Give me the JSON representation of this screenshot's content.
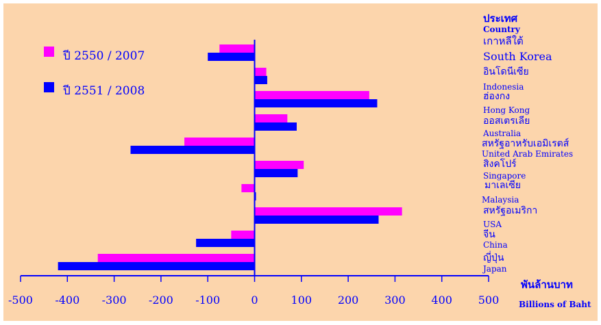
{
  "chart_data": {
    "type": "bar",
    "orientation": "horizontal",
    "title": "",
    "header": {
      "thai": "ประเทศ",
      "english": "Country"
    },
    "xlabel": {
      "thai": "พันล้านบาท",
      "english": "Billions of Baht"
    },
    "xlim": [
      -500,
      500
    ],
    "xticks": [
      "-500",
      "-400",
      "-300",
      "-200",
      "-100",
      "0",
      "100",
      "200",
      "300",
      "400",
      "500"
    ],
    "grid": false,
    "legend_position": "top-left",
    "categories": [
      {
        "thai": "เกาหลีใต้",
        "english": "South Korea"
      },
      {
        "thai": "อินโดนีเซีย",
        "english": "Indonesia"
      },
      {
        "thai": "ฮ่องกง",
        "english": "Hong Kong"
      },
      {
        "thai": "ออสเตรเลีย",
        "english": "Australia"
      },
      {
        "thai": "สหรัฐอาหรับเอมิเรตส์",
        "english": "United Arab Emirates"
      },
      {
        "thai": "สิงคโปร์",
        "english": "Singapore"
      },
      {
        "thai": "มาเลเซีย",
        "english": "Malaysia"
      },
      {
        "thai": "สหรัฐอเมริกา",
        "english": "USA"
      },
      {
        "thai": "จีน",
        "english": "China"
      },
      {
        "thai": "ญี่ปุ่น",
        "english": "Japan"
      }
    ],
    "series": [
      {
        "name": "ปี 2550 / 2007",
        "color": "#ff00ff",
        "values": [
          -75,
          25,
          245,
          70,
          -150,
          105,
          -28,
          315,
          -50,
          -335
        ]
      },
      {
        "name": "ปี 2551 / 2008",
        "color": "#0000ff",
        "values": [
          -100,
          27,
          262,
          90,
          -265,
          92,
          3,
          265,
          -125,
          -420
        ]
      }
    ],
    "colors": {
      "background": "#fcd5ac",
      "text": "#0000ff",
      "axis": "#0000ff"
    }
  }
}
